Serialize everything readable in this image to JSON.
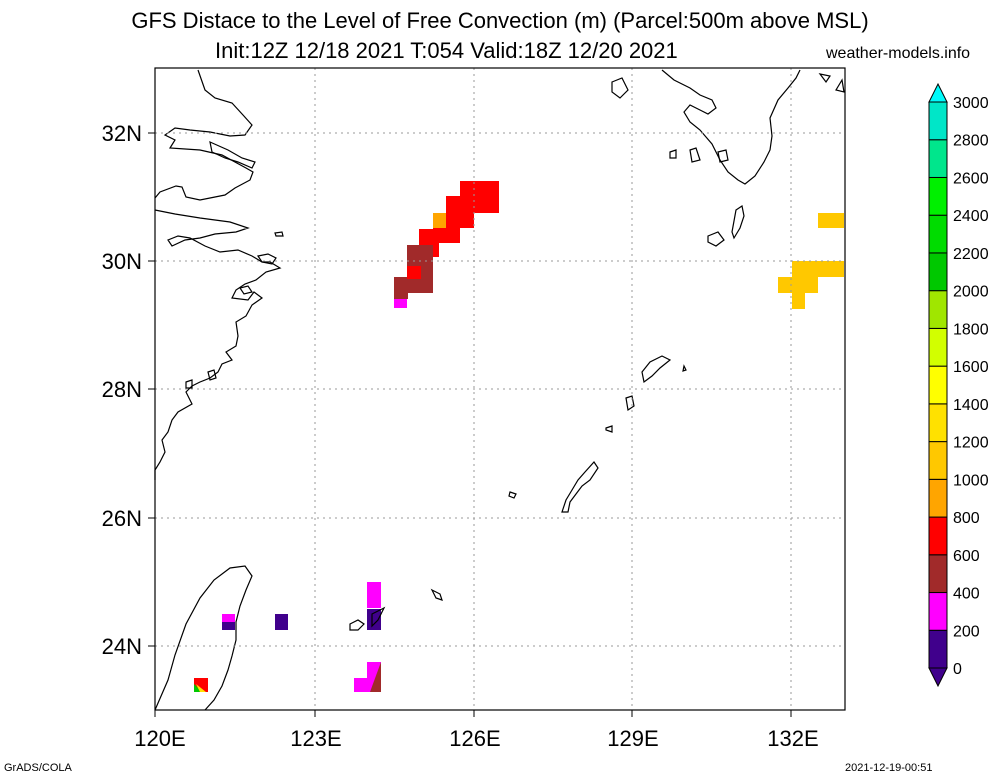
{
  "title_line1": "GFS Distace to the Level of Free Convection (m) (Parcel:500m above MSL)",
  "title_line2": "Init:12Z 12/18 2021 T:054 Valid:18Z 12/20 2021",
  "site": "weather-models.info",
  "footer_left": "GrADS/COLA",
  "footer_right": "2021-12-19-00:51",
  "map": {
    "lon_labels": [
      "120E",
      "123E",
      "126E",
      "129E",
      "132E"
    ],
    "lat_labels": [
      "32N",
      "30N",
      "28N",
      "26N",
      "24N"
    ],
    "lon_range": [
      120,
      133
    ],
    "lat_range": [
      23.0,
      33.0
    ],
    "grid": "dotted"
  },
  "colorbar": {
    "labels": [
      "0",
      "200",
      "400",
      "600",
      "800",
      "1000",
      "1200",
      "1400",
      "1600",
      "1800",
      "2000",
      "2200",
      "2400",
      "2600",
      "2800",
      "3000"
    ],
    "colors": [
      "#40008c",
      "#ff00ff",
      "#a12a2a",
      "#ff0000",
      "#ffa500",
      "#ffc800",
      "#ffe100",
      "#ffff00",
      "#d2ff00",
      "#a0e600",
      "#00c800",
      "#00dc00",
      "#00f000",
      "#00e68c",
      "#00e6c8",
      "#00fafa"
    ],
    "arrow_low_color": "#40008c",
    "arrow_high_color": "#00fafa"
  }
}
